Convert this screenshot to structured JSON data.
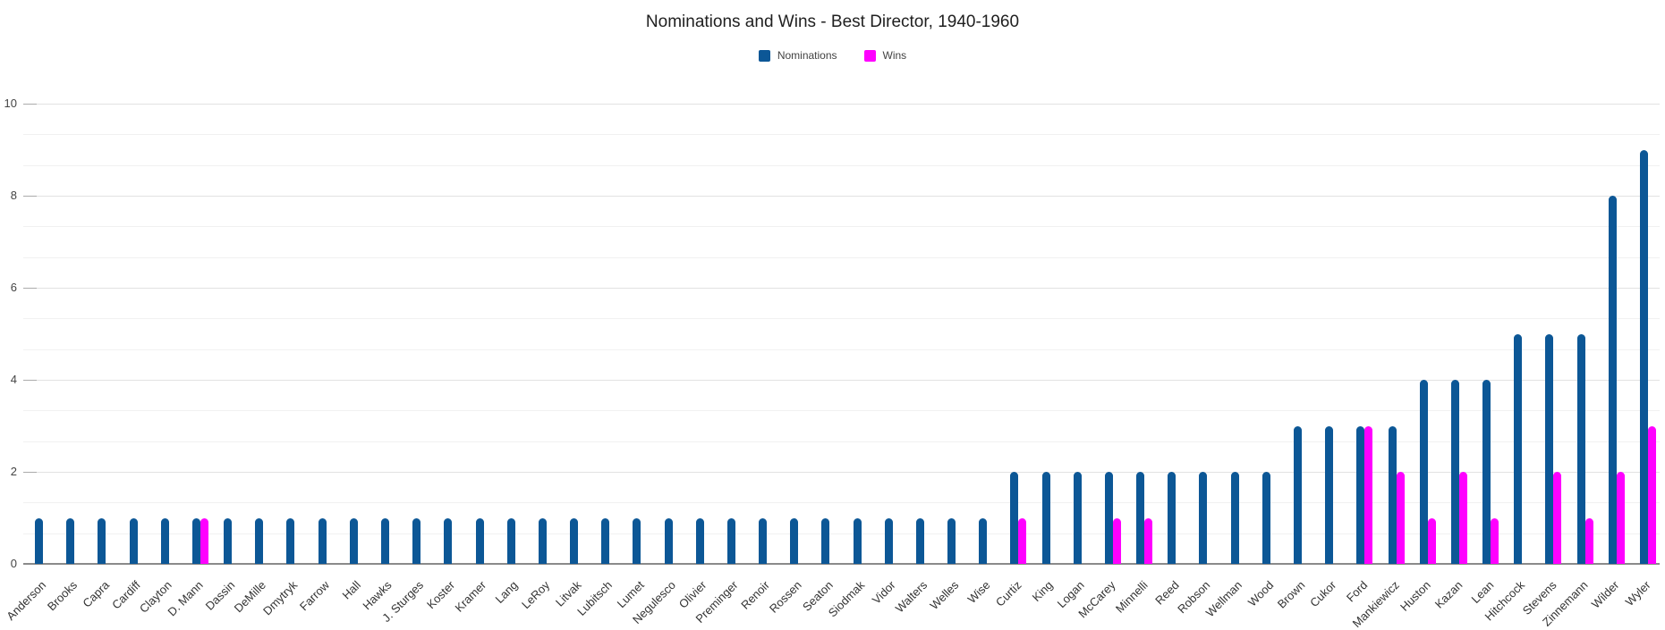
{
  "title": "Nominations and Wins - Best Director, 1940-1960",
  "y_axis": {
    "tick_labels": [
      "0",
      "2",
      "4",
      "6",
      "8",
      "10"
    ]
  },
  "chart_data": {
    "type": "bar",
    "title": "Nominations and Wins - Best Director, 1940-1960",
    "categories": [
      "Anderson",
      "Brooks",
      "Capra",
      "Cardiff",
      "Clayton",
      "D. Mann",
      "Dassin",
      "DeMille",
      "Dmytryk",
      "Farrow",
      "Hall",
      "Hawks",
      "J. Sturges",
      "Koster",
      "Kramer",
      "Lang",
      "LeRoy",
      "Litvak",
      "Lubitsch",
      "Lumet",
      "Negulesco",
      "Olivier",
      "Preminger",
      "Renoir",
      "Rossen",
      "Seaton",
      "Siodmak",
      "Vidor",
      "Walters",
      "Welles",
      "Wise",
      "Curtiz",
      "King",
      "Logan",
      "McCarey",
      "Minnelli",
      "Reed",
      "Robson",
      "Wellman",
      "Wood",
      "Brown",
      "Cukor",
      "Ford",
      "Mankiewicz",
      "Huston",
      "Kazan",
      "Lean",
      "Hitchcock",
      "Stevens",
      "Zinnemann",
      "Wilder",
      "Wyler"
    ],
    "series": [
      {
        "name": "Nominations",
        "color": "#0c5796",
        "values": [
          1,
          1,
          1,
          1,
          1,
          1,
          1,
          1,
          1,
          1,
          1,
          1,
          1,
          1,
          1,
          1,
          1,
          1,
          1,
          1,
          1,
          1,
          1,
          1,
          1,
          1,
          1,
          1,
          1,
          1,
          1,
          2,
          2,
          2,
          2,
          2,
          2,
          2,
          2,
          2,
          3,
          3,
          3,
          3,
          4,
          4,
          4,
          5,
          5,
          5,
          8,
          9
        ]
      },
      {
        "name": "Wins",
        "color": "#ff00ff",
        "values": [
          0,
          0,
          0,
          0,
          0,
          1,
          0,
          0,
          0,
          0,
          0,
          0,
          0,
          0,
          0,
          0,
          0,
          0,
          0,
          0,
          0,
          0,
          0,
          0,
          0,
          0,
          0,
          0,
          0,
          0,
          0,
          1,
          0,
          0,
          1,
          1,
          0,
          0,
          0,
          0,
          0,
          0,
          3,
          2,
          1,
          2,
          1,
          0,
          2,
          1,
          2,
          3
        ]
      }
    ],
    "xlabel": "",
    "ylabel": "",
    "ylim": [
      0,
      10
    ],
    "y_major_ticks": [
      0,
      2,
      4,
      6,
      8,
      10
    ],
    "minor_gridlines_between_majors": 2,
    "grid": true,
    "legend_position": "top-center",
    "bar_style": "rounded-top, grouped pairs"
  }
}
